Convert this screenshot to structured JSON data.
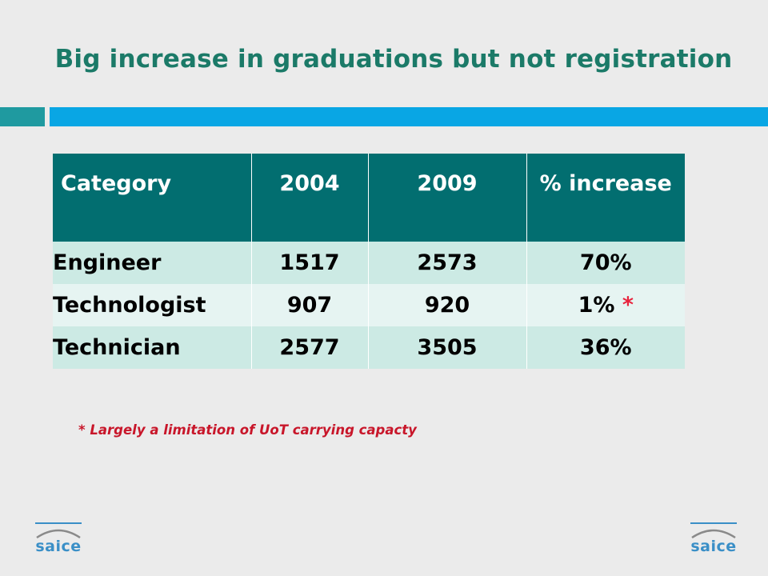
{
  "title": "Big increase in graduations but not registration",
  "table": {
    "headers": [
      "Category",
      "2004",
      "2009",
      "% increase"
    ],
    "rows": [
      {
        "category": "Engineer",
        "y2004": "1517",
        "y2009": "2573",
        "increase": "70%",
        "marker": ""
      },
      {
        "category": "Technologist",
        "y2004": "907",
        "y2009": "920",
        "increase": "1%",
        "marker": "*"
      },
      {
        "category": "Technician",
        "y2004": "2577",
        "y2009": "3505",
        "increase": "36%",
        "marker": ""
      }
    ]
  },
  "footnote": "* Largely a limitation of UoT carrying capacty",
  "logos": {
    "left": "saice",
    "right": "saice"
  },
  "colors": {
    "title": "#1b7a68",
    "header_bg": "#026e70",
    "row_dark": "#cceae4",
    "row_light": "#e6f4f2",
    "accent_bar": "#09a6e4",
    "footnote": "#c8162a"
  }
}
